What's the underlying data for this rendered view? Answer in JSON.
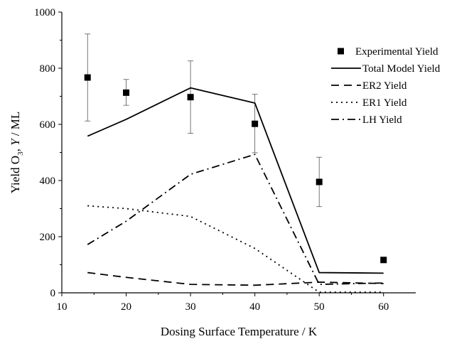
{
  "chart_data": {
    "type": "line",
    "xlabel": "Dosing Surface Temperature / K",
    "ylabel_parts": [
      "Yield O",
      "3",
      ", ",
      "Y",
      " / ML"
    ],
    "xlim": [
      10,
      65
    ],
    "ylim": [
      0,
      1000
    ],
    "x_ticks": [
      10,
      20,
      30,
      40,
      50,
      60
    ],
    "y_ticks": [
      0,
      200,
      400,
      600,
      800,
      1000
    ],
    "grid": false,
    "legend_position": "top-right",
    "series": [
      {
        "name": "Experimental Yield",
        "kind": "scatter",
        "marker": "square",
        "x": [
          14,
          20,
          30,
          40,
          50,
          60
        ],
        "y": [
          767,
          713,
          697,
          602,
          395,
          117
        ],
        "err_low": [
          612,
          668,
          568,
          499,
          307,
          null
        ],
        "err_high": [
          922,
          760,
          826,
          707,
          483,
          null
        ]
      },
      {
        "name": "Total Model Yield",
        "kind": "line",
        "dash": "solid",
        "x": [
          14,
          20,
          30,
          40,
          50,
          60
        ],
        "y": [
          558,
          618,
          730,
          676,
          72,
          70
        ]
      },
      {
        "name": "ER2 Yield",
        "kind": "line",
        "dash": "dash",
        "x": [
          14,
          20,
          30,
          40,
          50,
          60
        ],
        "y": [
          72,
          55,
          30,
          27,
          38,
          33
        ]
      },
      {
        "name": "ER1 Yield",
        "kind": "line",
        "dash": "dot",
        "x": [
          14,
          20,
          30,
          40,
          50,
          60
        ],
        "y": [
          310,
          300,
          272,
          158,
          2,
          2
        ]
      },
      {
        "name": "LH Yield",
        "kind": "line",
        "dash": "dashdot",
        "x": [
          14,
          20,
          30,
          40,
          50,
          60
        ],
        "y": [
          172,
          255,
          422,
          493,
          30,
          35
        ]
      }
    ]
  }
}
